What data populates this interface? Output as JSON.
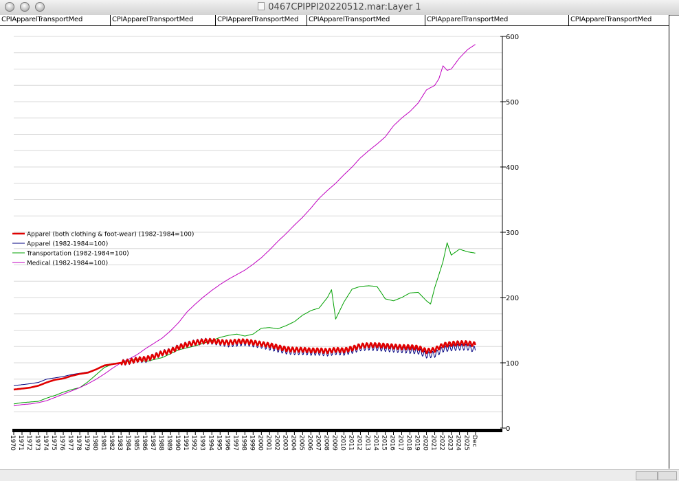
{
  "window": {
    "title": "0467CPIPPI20220512.mar:Layer 1"
  },
  "tabs": [
    {
      "label": "CPIApparelTransportMed"
    },
    {
      "label": "CPIApparelTransportMed"
    },
    {
      "label": "CPIApparelTransportMed"
    },
    {
      "label": "CPIApparelTransportMed"
    },
    {
      "label": "CPIApparelTransportMed"
    },
    {
      "label": "CPIApparelTransportMed"
    }
  ],
  "chart_data": {
    "type": "line",
    "title": "",
    "xlabel": "",
    "ylabel": "",
    "xlim": [
      1970,
      2025.95
    ],
    "ylim": [
      0,
      600
    ],
    "y_axis_side": "right",
    "y_ticks": [
      0,
      100,
      200,
      300,
      400,
      500,
      600
    ],
    "x_tick_labels": [
      {
        "x": 1970,
        "label": "1970"
      },
      {
        "x": 1971,
        "label": "1971"
      },
      {
        "x": 1972,
        "label": "1972"
      },
      {
        "x": 1973,
        "label": "1973"
      },
      {
        "x": 1974,
        "label": "1974"
      },
      {
        "x": 1975,
        "label": "1975"
      },
      {
        "x": 1976,
        "label": "1976"
      },
      {
        "x": 1977,
        "label": "1977"
      },
      {
        "x": 1978,
        "label": "1978"
      },
      {
        "x": 1979,
        "label": "1979"
      },
      {
        "x": 1980,
        "label": "1980"
      },
      {
        "x": 1981,
        "label": "1981"
      },
      {
        "x": 1982,
        "label": "1982"
      },
      {
        "x": 1983,
        "label": "1983"
      },
      {
        "x": 1984,
        "label": "1984"
      },
      {
        "x": 1985,
        "label": "1985"
      },
      {
        "x": 1986,
        "label": "1986"
      },
      {
        "x": 1987,
        "label": "1987"
      },
      {
        "x": 1988,
        "label": "1988"
      },
      {
        "x": 1989,
        "label": "1989"
      },
      {
        "x": 1990,
        "label": "1990"
      },
      {
        "x": 1991,
        "label": "1991"
      },
      {
        "x": 1992,
        "label": "1992"
      },
      {
        "x": 1993,
        "label": "1993"
      },
      {
        "x": 1994,
        "label": "1994"
      },
      {
        "x": 1995,
        "label": "1995"
      },
      {
        "x": 1996,
        "label": "1996"
      },
      {
        "x": 1997,
        "label": "1997"
      },
      {
        "x": 1998,
        "label": "1998"
      },
      {
        "x": 1999,
        "label": "1999"
      },
      {
        "x": 2000,
        "label": "2000"
      },
      {
        "x": 2001,
        "label": "2001"
      },
      {
        "x": 2002,
        "label": "2002"
      },
      {
        "x": 2003,
        "label": "2003"
      },
      {
        "x": 2004,
        "label": "2004"
      },
      {
        "x": 2005,
        "label": "2005"
      },
      {
        "x": 2006,
        "label": "2006"
      },
      {
        "x": 2007,
        "label": "2007"
      },
      {
        "x": 2008,
        "label": "2008"
      },
      {
        "x": 2009,
        "label": "2009"
      },
      {
        "x": 2010,
        "label": "2010"
      },
      {
        "x": 2011,
        "label": "2011"
      },
      {
        "x": 2012,
        "label": "2012"
      },
      {
        "x": 2013,
        "label": "2013"
      },
      {
        "x": 2014,
        "label": "2014"
      },
      {
        "x": 2015,
        "label": "2015"
      },
      {
        "x": 2016,
        "label": "2016"
      },
      {
        "x": 2017,
        "label": "2017"
      },
      {
        "x": 2018,
        "label": "2018"
      },
      {
        "x": 2019,
        "label": "2019"
      },
      {
        "x": 2020,
        "label": "2020"
      },
      {
        "x": 2021,
        "label": "2021"
      },
      {
        "x": 2022,
        "label": "2022"
      },
      {
        "x": 2023,
        "label": "2023"
      },
      {
        "x": 2024,
        "label": "2024"
      },
      {
        "x": 2025,
        "label": "2025"
      },
      {
        "x": 2025.95,
        "label": "Dec"
      }
    ],
    "grid": true,
    "legend_position": "left-middle",
    "series": [
      {
        "name": "Apparel (both clothing & foot-wear) (1982-1984=100)",
        "color": "#e00000",
        "seasonal_amplitude": 3.5,
        "points": [
          [
            1970,
            59
          ],
          [
            1972,
            62
          ],
          [
            1973,
            65
          ],
          [
            1974,
            70
          ],
          [
            1975,
            74
          ],
          [
            1976,
            76
          ],
          [
            1977,
            80
          ],
          [
            1978,
            83
          ],
          [
            1979,
            85
          ],
          [
            1980,
            90
          ],
          [
            1981,
            96
          ],
          [
            1982,
            98
          ],
          [
            1983,
            100
          ],
          [
            1984,
            102
          ],
          [
            1985,
            105
          ],
          [
            1986,
            106
          ],
          [
            1987,
            110
          ],
          [
            1988,
            115
          ],
          [
            1989,
            118
          ],
          [
            1990,
            124
          ],
          [
            1991,
            128
          ],
          [
            1992,
            131
          ],
          [
            1993,
            133
          ],
          [
            1994,
            133.5
          ],
          [
            1995,
            132
          ],
          [
            1996,
            131
          ],
          [
            1997,
            132.5
          ],
          [
            1998,
            133
          ],
          [
            1999,
            131
          ],
          [
            2000,
            129
          ],
          [
            2001,
            127
          ],
          [
            2002,
            124
          ],
          [
            2003,
            121
          ],
          [
            2004,
            120
          ],
          [
            2005,
            120
          ],
          [
            2006,
            119
          ],
          [
            2007,
            119
          ],
          [
            2008,
            118
          ],
          [
            2009,
            120
          ],
          [
            2010,
            119
          ],
          [
            2011,
            122
          ],
          [
            2012,
            126
          ],
          [
            2013,
            127
          ],
          [
            2014,
            127
          ],
          [
            2015,
            126
          ],
          [
            2016,
            125
          ],
          [
            2017,
            124
          ],
          [
            2018,
            124
          ],
          [
            2019,
            123
          ],
          [
            2020,
            118
          ],
          [
            2021,
            120
          ],
          [
            2022,
            127
          ],
          [
            2023,
            129
          ],
          [
            2024,
            130
          ],
          [
            2025,
            130
          ],
          [
            2025.95,
            128
          ]
        ]
      },
      {
        "name": "Apparel (1982-1984=100)",
        "color": "#000080",
        "seasonal_amplitude": 5,
        "points": [
          [
            1970,
            65
          ],
          [
            1972,
            68
          ],
          [
            1973,
            70
          ],
          [
            1974,
            75
          ],
          [
            1975,
            77
          ],
          [
            1976,
            79
          ],
          [
            1977,
            82
          ],
          [
            1978,
            84
          ],
          [
            1979,
            86
          ],
          [
            1980,
            90
          ],
          [
            1981,
            95
          ],
          [
            1982,
            98
          ],
          [
            1983,
            100
          ],
          [
            1984,
            102
          ],
          [
            1985,
            105
          ],
          [
            1986,
            105
          ],
          [
            1987,
            110
          ],
          [
            1988,
            115
          ],
          [
            1989,
            118
          ],
          [
            1990,
            124
          ],
          [
            1991,
            128
          ],
          [
            1992,
            131
          ],
          [
            1993,
            133
          ],
          [
            1994,
            133
          ],
          [
            1995,
            131
          ],
          [
            1996,
            129
          ],
          [
            1997,
            130
          ],
          [
            1998,
            131
          ],
          [
            1999,
            129
          ],
          [
            2000,
            127
          ],
          [
            2001,
            124
          ],
          [
            2002,
            121
          ],
          [
            2003,
            118
          ],
          [
            2004,
            117
          ],
          [
            2005,
            117
          ],
          [
            2006,
            116
          ],
          [
            2007,
            116
          ],
          [
            2008,
            115
          ],
          [
            2009,
            117
          ],
          [
            2010,
            116
          ],
          [
            2011,
            119
          ],
          [
            2012,
            123
          ],
          [
            2013,
            124
          ],
          [
            2014,
            123
          ],
          [
            2015,
            122
          ],
          [
            2016,
            121
          ],
          [
            2017,
            120
          ],
          [
            2018,
            119
          ],
          [
            2019,
            118
          ],
          [
            2020,
            112
          ],
          [
            2021,
            113
          ],
          [
            2022,
            121
          ],
          [
            2023,
            123
          ],
          [
            2024,
            124
          ],
          [
            2025,
            124
          ],
          [
            2025.95,
            120
          ]
        ]
      },
      {
        "name": "Transportation (1982-1984=100)",
        "color": "#00a000",
        "seasonal_amplitude": 0,
        "points": [
          [
            1970,
            37
          ],
          [
            1971,
            39
          ],
          [
            1972,
            40
          ],
          [
            1973,
            41
          ],
          [
            1974,
            46
          ],
          [
            1975,
            50
          ],
          [
            1976,
            55
          ],
          [
            1977,
            59
          ],
          [
            1978,
            62
          ],
          [
            1979,
            71
          ],
          [
            1980,
            82
          ],
          [
            1981,
            93
          ],
          [
            1982,
            98
          ],
          [
            1983,
            100
          ],
          [
            1984,
            103
          ],
          [
            1985,
            106
          ],
          [
            1986,
            102
          ],
          [
            1987,
            105
          ],
          [
            1988,
            108
          ],
          [
            1989,
            114
          ],
          [
            1990,
            120
          ],
          [
            1991,
            123
          ],
          [
            1992,
            126
          ],
          [
            1993,
            130
          ],
          [
            1994,
            134
          ],
          [
            1995,
            139
          ],
          [
            1996,
            142
          ],
          [
            1997,
            144
          ],
          [
            1998,
            141
          ],
          [
            1999,
            144
          ],
          [
            2000,
            153
          ],
          [
            2001,
            154
          ],
          [
            2002,
            152
          ],
          [
            2003,
            157
          ],
          [
            2004,
            163
          ],
          [
            2005,
            173
          ],
          [
            2006,
            180
          ],
          [
            2007,
            184
          ],
          [
            2008,
            200
          ],
          [
            2008.5,
            212
          ],
          [
            2009,
            167
          ],
          [
            2010,
            193
          ],
          [
            2011,
            213
          ],
          [
            2012,
            217
          ],
          [
            2013,
            218
          ],
          [
            2014,
            217
          ],
          [
            2014.7,
            204
          ],
          [
            2015,
            198
          ],
          [
            2016,
            195
          ],
          [
            2017,
            200
          ],
          [
            2018,
            207
          ],
          [
            2019,
            208
          ],
          [
            2020,
            195
          ],
          [
            2020.5,
            190
          ],
          [
            2021,
            215
          ],
          [
            2022,
            255
          ],
          [
            2022.5,
            284
          ],
          [
            2023,
            265
          ],
          [
            2024,
            274
          ],
          [
            2025,
            270
          ],
          [
            2025.95,
            268
          ]
        ]
      },
      {
        "name": "Medical (1982-1984=100)",
        "color": "#c000c0",
        "seasonal_amplitude": 0,
        "points": [
          [
            1970,
            34
          ],
          [
            1971,
            36
          ],
          [
            1972,
            37
          ],
          [
            1973,
            39
          ],
          [
            1974,
            42
          ],
          [
            1975,
            47
          ],
          [
            1976,
            52
          ],
          [
            1977,
            57
          ],
          [
            1978,
            62
          ],
          [
            1979,
            68
          ],
          [
            1980,
            75
          ],
          [
            1981,
            83
          ],
          [
            1982,
            92
          ],
          [
            1983,
            100
          ],
          [
            1984,
            106
          ],
          [
            1985,
            113
          ],
          [
            1986,
            122
          ],
          [
            1987,
            130
          ],
          [
            1988,
            138
          ],
          [
            1989,
            149
          ],
          [
            1990,
            162
          ],
          [
            1991,
            178
          ],
          [
            1992,
            190
          ],
          [
            1993,
            201
          ],
          [
            1994,
            211
          ],
          [
            1995,
            220
          ],
          [
            1996,
            228
          ],
          [
            1997,
            235
          ],
          [
            1998,
            242
          ],
          [
            1999,
            251
          ],
          [
            2000,
            261
          ],
          [
            2001,
            273
          ],
          [
            2002,
            286
          ],
          [
            2003,
            298
          ],
          [
            2004,
            311
          ],
          [
            2005,
            323
          ],
          [
            2006,
            337
          ],
          [
            2007,
            352
          ],
          [
            2008,
            364
          ],
          [
            2009,
            375
          ],
          [
            2010,
            388
          ],
          [
            2011,
            400
          ],
          [
            2012,
            414
          ],
          [
            2013,
            425
          ],
          [
            2014,
            435
          ],
          [
            2015,
            446
          ],
          [
            2016,
            463
          ],
          [
            2017,
            475
          ],
          [
            2018,
            485
          ],
          [
            2019,
            498
          ],
          [
            2020,
            518
          ],
          [
            2021,
            525
          ],
          [
            2021.5,
            535
          ],
          [
            2022,
            555
          ],
          [
            2022.5,
            548
          ],
          [
            2023,
            550
          ],
          [
            2024,
            567
          ],
          [
            2025,
            580
          ],
          [
            2025.95,
            588
          ]
        ]
      }
    ]
  }
}
